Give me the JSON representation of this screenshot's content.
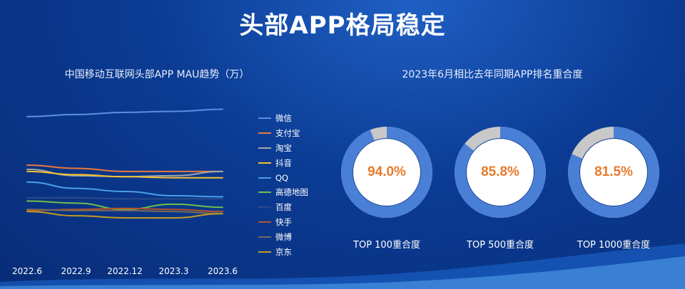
{
  "page": {
    "title": "头部APP格局稳定"
  },
  "chart_data": [
    {
      "type": "line",
      "title": "中国移动互联网头部APP MAU趋势（万）",
      "x": [
        "2022.6",
        "2022.9",
        "2022.12",
        "2023.3",
        "2023.6"
      ],
      "legend_position": "right",
      "grid": false,
      "series": [
        {
          "name": "微信",
          "color": "#5b8fe0",
          "values": [
            100,
            101,
            102,
            102.5,
            103.5
          ]
        },
        {
          "name": "支付宝",
          "color": "#e87a3c",
          "values": [
            77,
            75.5,
            74,
            74,
            74
          ]
        },
        {
          "name": "淘宝",
          "color": "#a6a6a6",
          "values": [
            75,
            72,
            71.5,
            72,
            74
          ]
        },
        {
          "name": "抖音",
          "color": "#f2c12e",
          "values": [
            74,
            72.5,
            71.5,
            71,
            71
          ]
        },
        {
          "name": "QQ",
          "color": "#4a9fe8",
          "values": [
            69,
            66,
            64.5,
            62.5,
            62
          ]
        },
        {
          "name": "高德地图",
          "color": "#6cc04a",
          "values": [
            60,
            59,
            56,
            58.5,
            57
          ]
        },
        {
          "name": "百度",
          "color": "#2b4c8a",
          "values": [
            61.5,
            61.5,
            61,
            61,
            61
          ]
        },
        {
          "name": "快手",
          "color": "#b5532a",
          "values": [
            55.5,
            56,
            56.5,
            56,
            55
          ]
        },
        {
          "name": "微博",
          "color": "#7a6a5a",
          "values": [
            56,
            55.5,
            55.5,
            55,
            54
          ]
        },
        {
          "name": "京东",
          "color": "#c39a22",
          "values": [
            55,
            53,
            52,
            52,
            54
          ]
        }
      ]
    },
    {
      "type": "pie",
      "title": "2023年6月相比去年同期APP排名重合度",
      "items": [
        {
          "label": "TOP 100重合度",
          "value_text": "94.0%",
          "value": 0.94
        },
        {
          "label": "TOP 500重合度",
          "value_text": "85.8%",
          "value": 0.858
        },
        {
          "label": "TOP 1000重合度",
          "value_text": "81.5%",
          "value": 0.815
        }
      ],
      "colors": {
        "overlap": "#4a7fd6",
        "rest": "#c8c8c8"
      }
    }
  ]
}
